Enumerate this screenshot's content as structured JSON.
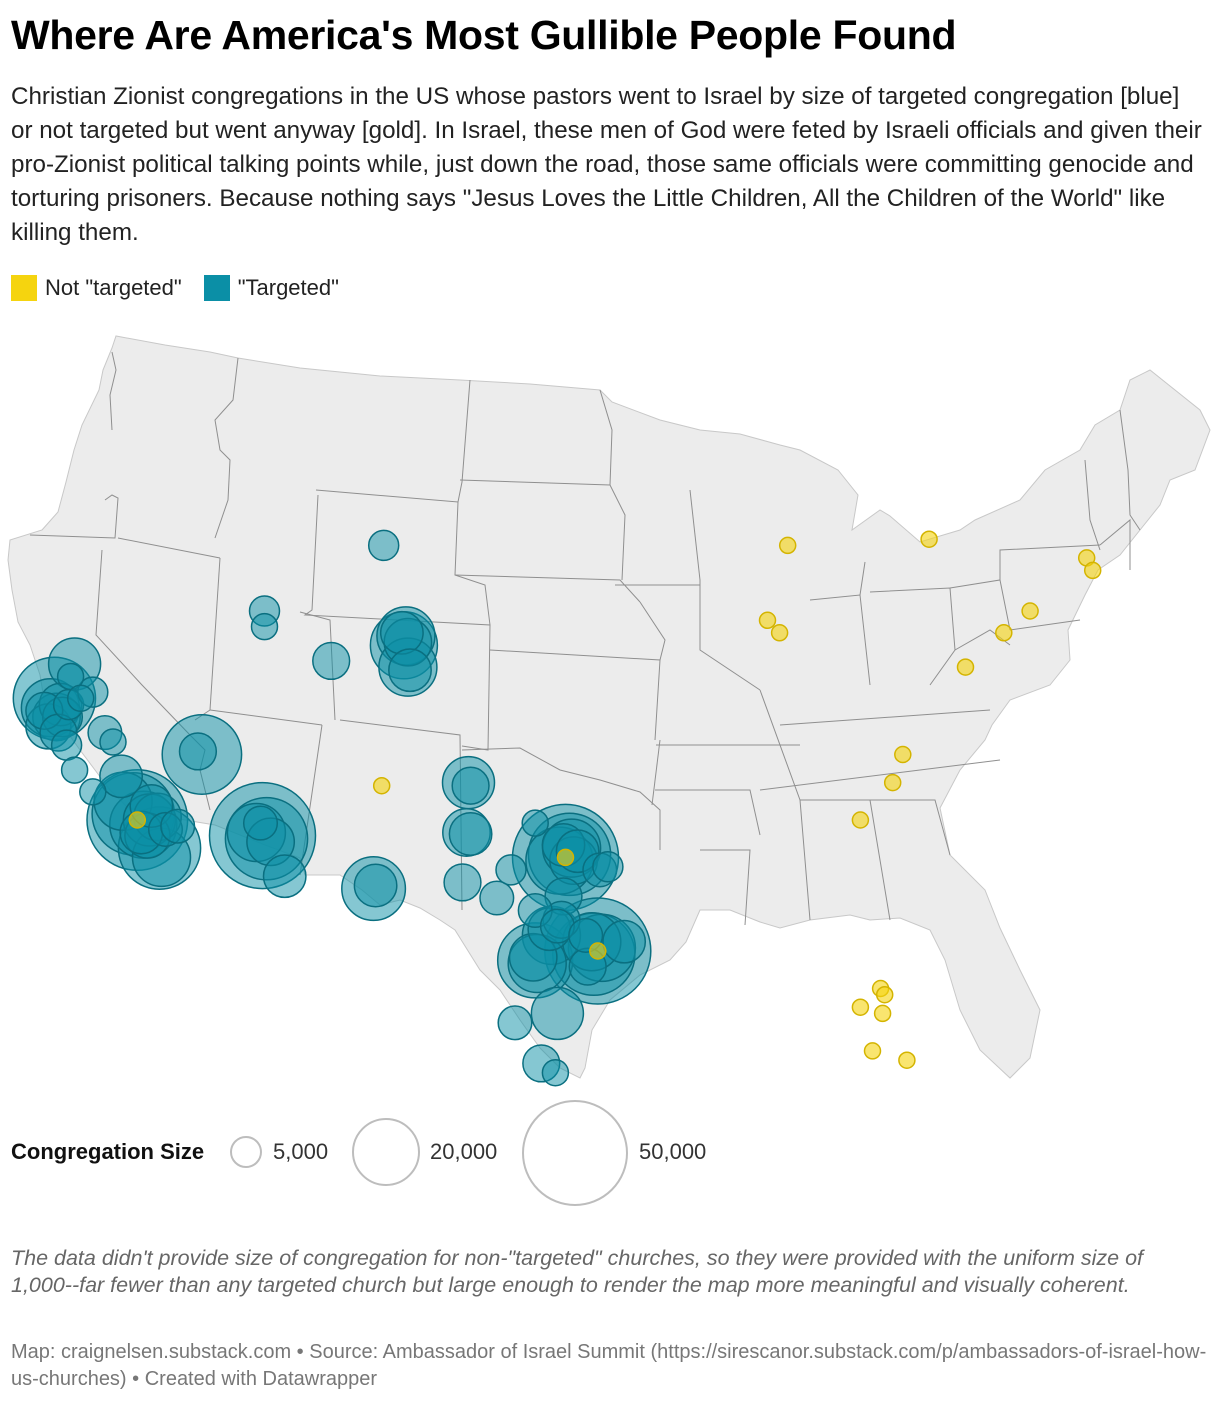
{
  "header": {
    "title": "Where Are America's Most Gullible People Found",
    "subtitle": "Christian Zionist congregations in the US whose pastors went to Israel by size of targeted congregation [blue] or not targeted but went anyway [gold]. In Israel, these men of God were feted by Israeli officials and given their pro-Zionist political talking points while, just down the road, those same officials were committing genocide and torturing prisoners. Because nothing says \"Jesus Loves the Little Children, All the Children of the World\" like killing them."
  },
  "legend": {
    "items": [
      {
        "label": "Not \"targeted\"",
        "color": "#f5d40f"
      },
      {
        "label": "\"Targeted\"",
        "color": "#0b8fa6"
      }
    ]
  },
  "size_legend": {
    "title": "Congregation Size",
    "items": [
      {
        "label": "5,000",
        "value": 5000
      },
      {
        "label": "20,000",
        "value": 20000
      },
      {
        "label": "50,000",
        "value": 50000
      }
    ]
  },
  "colors": {
    "land": "#ececec",
    "border": "#8f8f8f",
    "targeted_fill": "#0b8fa6",
    "targeted_stroke": "#0a6f80",
    "not_targeted_fill": "#f5d40f",
    "not_targeted_stroke": "#d4b400"
  },
  "map_data": {
    "type": "proportional-symbol",
    "not_targeted_size": 1000,
    "points": [
      {
        "lon": -121.3,
        "lat": 39.0,
        "size": 12000,
        "cat": "targeted"
      },
      {
        "lon": -121.5,
        "lat": 38.6,
        "size": 3000,
        "cat": "targeted"
      },
      {
        "lon": -122.3,
        "lat": 37.9,
        "size": 30000,
        "cat": "targeted"
      },
      {
        "lon": -122.0,
        "lat": 37.7,
        "size": 8000,
        "cat": "targeted"
      },
      {
        "lon": -122.5,
        "lat": 37.6,
        "size": 15000,
        "cat": "targeted"
      },
      {
        "lon": -122.8,
        "lat": 37.5,
        "size": 6000,
        "cat": "targeted"
      },
      {
        "lon": -122.2,
        "lat": 37.3,
        "size": 10000,
        "cat": "targeted"
      },
      {
        "lon": -121.9,
        "lat": 37.3,
        "size": 7000,
        "cat": "targeted"
      },
      {
        "lon": -122.6,
        "lat": 37.0,
        "size": 9000,
        "cat": "targeted"
      },
      {
        "lon": -121.6,
        "lat": 37.7,
        "size": 4000,
        "cat": "targeted"
      },
      {
        "lon": -121.0,
        "lat": 37.9,
        "size": 3000,
        "cat": "targeted"
      },
      {
        "lon": -120.4,
        "lat": 38.1,
        "size": 4000,
        "cat": "targeted"
      },
      {
        "lon": -122.1,
        "lat": 36.8,
        "size": 6000,
        "cat": "targeted"
      },
      {
        "lon": -119.8,
        "lat": 36.8,
        "size": 5000,
        "cat": "targeted"
      },
      {
        "lon": -119.4,
        "lat": 36.5,
        "size": 3000,
        "cat": "targeted"
      },
      {
        "lon": -121.7,
        "lat": 36.4,
        "size": 4000,
        "cat": "targeted"
      },
      {
        "lon": -121.3,
        "lat": 35.6,
        "size": 3000,
        "cat": "targeted"
      },
      {
        "lon": -119.0,
        "lat": 35.4,
        "size": 8000,
        "cat": "targeted"
      },
      {
        "lon": -120.4,
        "lat": 34.9,
        "size": 3000,
        "cat": "targeted"
      },
      {
        "lon": -118.9,
        "lat": 34.6,
        "size": 15000,
        "cat": "targeted"
      },
      {
        "lon": -118.4,
        "lat": 34.2,
        "size": 30000,
        "cat": "targeted"
      },
      {
        "lon": -118.2,
        "lat": 34.0,
        "size": 45000,
        "cat": "targeted"
      },
      {
        "lon": -117.9,
        "lat": 33.85,
        "size": 20000,
        "cat": "targeted"
      },
      {
        "lon": -117.6,
        "lat": 34.0,
        "size": 12000,
        "cat": "targeted"
      },
      {
        "lon": -117.2,
        "lat": 34.1,
        "size": 10000,
        "cat": "targeted"
      },
      {
        "lon": -118.0,
        "lat": 33.6,
        "size": 8000,
        "cat": "targeted"
      },
      {
        "lon": -117.7,
        "lat": 33.5,
        "size": 9000,
        "cat": "targeted"
      },
      {
        "lon": -117.1,
        "lat": 33.1,
        "size": 30000,
        "cat": "targeted"
      },
      {
        "lon": -117.0,
        "lat": 32.8,
        "size": 15000,
        "cat": "targeted"
      },
      {
        "lon": -116.8,
        "lat": 33.7,
        "size": 5000,
        "cat": "targeted"
      },
      {
        "lon": -116.2,
        "lat": 33.8,
        "size": 5000,
        "cat": "targeted"
      },
      {
        "lon": -117.5,
        "lat": 34.45,
        "size": 8000,
        "cat": "targeted"
      },
      {
        "lon": -115.0,
        "lat": 36.1,
        "size": 28000,
        "cat": "targeted"
      },
      {
        "lon": -115.2,
        "lat": 36.2,
        "size": 6000,
        "cat": "targeted"
      },
      {
        "lon": -112.0,
        "lat": 33.5,
        "size": 50000,
        "cat": "targeted"
      },
      {
        "lon": -111.8,
        "lat": 33.4,
        "size": 30000,
        "cat": "targeted"
      },
      {
        "lon": -112.3,
        "lat": 33.6,
        "size": 15000,
        "cat": "targeted"
      },
      {
        "lon": -111.6,
        "lat": 33.3,
        "size": 10000,
        "cat": "targeted"
      },
      {
        "lon": -112.1,
        "lat": 33.9,
        "size": 5000,
        "cat": "targeted"
      },
      {
        "lon": -110.9,
        "lat": 32.2,
        "size": 8000,
        "cat": "targeted"
      },
      {
        "lon": -111.9,
        "lat": 40.7,
        "size": 4000,
        "cat": "targeted"
      },
      {
        "lon": -111.9,
        "lat": 40.2,
        "size": 3000,
        "cat": "targeted"
      },
      {
        "lon": -108.6,
        "lat": 39.1,
        "size": 6000,
        "cat": "targeted"
      },
      {
        "lon": -106.0,
        "lat": 42.8,
        "size": 4000,
        "cat": "targeted"
      },
      {
        "lon": -104.9,
        "lat": 39.9,
        "size": 15000,
        "cat": "targeted"
      },
      {
        "lon": -105.0,
        "lat": 39.6,
        "size": 20000,
        "cat": "targeted"
      },
      {
        "lon": -104.8,
        "lat": 39.7,
        "size": 10000,
        "cat": "targeted"
      },
      {
        "lon": -105.1,
        "lat": 40.0,
        "size": 8000,
        "cat": "targeted"
      },
      {
        "lon": -104.8,
        "lat": 38.9,
        "size": 15000,
        "cat": "targeted"
      },
      {
        "lon": -104.7,
        "lat": 38.8,
        "size": 8000,
        "cat": "targeted"
      },
      {
        "lon": -106.5,
        "lat": 31.8,
        "size": 18000,
        "cat": "targeted"
      },
      {
        "lon": -106.4,
        "lat": 31.9,
        "size": 8000,
        "cat": "targeted"
      },
      {
        "lon": -101.8,
        "lat": 35.2,
        "size": 12000,
        "cat": "targeted"
      },
      {
        "lon": -101.7,
        "lat": 35.1,
        "size": 6000,
        "cat": "targeted"
      },
      {
        "lon": -101.9,
        "lat": 33.6,
        "size": 10000,
        "cat": "targeted"
      },
      {
        "lon": -101.7,
        "lat": 33.55,
        "size": 8000,
        "cat": "targeted"
      },
      {
        "lon": -102.1,
        "lat": 32.0,
        "size": 6000,
        "cat": "targeted"
      },
      {
        "lon": -99.7,
        "lat": 32.4,
        "size": 4000,
        "cat": "targeted"
      },
      {
        "lon": -98.5,
        "lat": 33.9,
        "size": 3000,
        "cat": "targeted"
      },
      {
        "lon": -97.0,
        "lat": 32.8,
        "size": 50000,
        "cat": "targeted"
      },
      {
        "lon": -96.8,
        "lat": 32.9,
        "size": 30000,
        "cat": "targeted"
      },
      {
        "lon": -97.3,
        "lat": 32.7,
        "size": 20000,
        "cat": "targeted"
      },
      {
        "lon": -96.7,
        "lat": 33.1,
        "size": 15000,
        "cat": "targeted"
      },
      {
        "lon": -96.6,
        "lat": 32.7,
        "size": 10000,
        "cat": "targeted"
      },
      {
        "lon": -97.1,
        "lat": 33.2,
        "size": 8000,
        "cat": "targeted"
      },
      {
        "lon": -96.4,
        "lat": 33.0,
        "size": 8000,
        "cat": "targeted"
      },
      {
        "lon": -95.3,
        "lat": 32.4,
        "size": 5000,
        "cat": "targeted"
      },
      {
        "lon": -94.9,
        "lat": 32.5,
        "size": 4000,
        "cat": "targeted"
      },
      {
        "lon": -97.1,
        "lat": 31.55,
        "size": 6000,
        "cat": "targeted"
      },
      {
        "lon": -100.4,
        "lat": 31.5,
        "size": 5000,
        "cat": "targeted"
      },
      {
        "lon": -98.5,
        "lat": 31.1,
        "size": 5000,
        "cat": "targeted"
      },
      {
        "lon": -97.7,
        "lat": 30.3,
        "size": 15000,
        "cat": "targeted"
      },
      {
        "lon": -97.8,
        "lat": 30.5,
        "size": 8000,
        "cat": "targeted"
      },
      {
        "lon": -97.4,
        "lat": 30.6,
        "size": 5000,
        "cat": "targeted"
      },
      {
        "lon": -97.2,
        "lat": 30.8,
        "size": 6000,
        "cat": "targeted"
      },
      {
        "lon": -98.5,
        "lat": 29.5,
        "size": 25000,
        "cat": "targeted"
      },
      {
        "lon": -98.4,
        "lat": 29.4,
        "size": 15000,
        "cat": "targeted"
      },
      {
        "lon": -98.6,
        "lat": 29.6,
        "size": 10000,
        "cat": "targeted"
      },
      {
        "lon": -95.4,
        "lat": 29.8,
        "size": 50000,
        "cat": "targeted"
      },
      {
        "lon": -95.6,
        "lat": 29.7,
        "size": 30000,
        "cat": "targeted"
      },
      {
        "lon": -95.2,
        "lat": 29.9,
        "size": 20000,
        "cat": "targeted"
      },
      {
        "lon": -95.7,
        "lat": 30.1,
        "size": 15000,
        "cat": "targeted"
      },
      {
        "lon": -94.1,
        "lat": 30.1,
        "size": 8000,
        "cat": "targeted"
      },
      {
        "lon": -96.0,
        "lat": 30.3,
        "size": 5000,
        "cat": "targeted"
      },
      {
        "lon": -95.9,
        "lat": 29.3,
        "size": 6000,
        "cat": "targeted"
      },
      {
        "lon": -97.4,
        "lat": 27.8,
        "size": 12000,
        "cat": "targeted"
      },
      {
        "lon": -99.5,
        "lat": 27.5,
        "size": 5000,
        "cat": "targeted"
      },
      {
        "lon": -98.2,
        "lat": 26.2,
        "size": 6000,
        "cat": "targeted"
      },
      {
        "lon": -97.5,
        "lat": 25.9,
        "size": 3000,
        "cat": "targeted"
      },
      {
        "lon": -118.2,
        "lat": 34.0,
        "size": 1000,
        "cat": "not-targeted"
      },
      {
        "lon": -106.1,
        "lat": 35.1,
        "size": 1000,
        "cat": "not-targeted"
      },
      {
        "lon": -97.0,
        "lat": 32.8,
        "size": 1000,
        "cat": "not-targeted"
      },
      {
        "lon": -95.4,
        "lat": 29.8,
        "size": 1000,
        "cat": "not-targeted"
      },
      {
        "lon": -86.0,
        "lat": 42.8,
        "size": 1000,
        "cat": "not-targeted"
      },
      {
        "lon": -87.0,
        "lat": 40.4,
        "size": 1000,
        "cat": "not-targeted"
      },
      {
        "lon": -86.4,
        "lat": 40.0,
        "size": 1000,
        "cat": "not-targeted"
      },
      {
        "lon": -79.0,
        "lat": 43.0,
        "size": 1000,
        "cat": "not-targeted"
      },
      {
        "lon": -71.2,
        "lat": 42.4,
        "size": 1000,
        "cat": "not-targeted"
      },
      {
        "lon": -70.9,
        "lat": 42.0,
        "size": 1000,
        "cat": "not-targeted"
      },
      {
        "lon": -74.0,
        "lat": 40.7,
        "size": 1000,
        "cat": "not-targeted"
      },
      {
        "lon": -75.3,
        "lat": 40.0,
        "size": 1000,
        "cat": "not-targeted"
      },
      {
        "lon": -77.2,
        "lat": 38.9,
        "size": 1000,
        "cat": "not-targeted"
      },
      {
        "lon": -80.3,
        "lat": 36.1,
        "size": 1000,
        "cat": "not-targeted"
      },
      {
        "lon": -80.8,
        "lat": 35.2,
        "size": 1000,
        "cat": "not-targeted"
      },
      {
        "lon": -82.4,
        "lat": 34.0,
        "size": 1000,
        "cat": "not-targeted"
      },
      {
        "lon": -81.4,
        "lat": 28.6,
        "size": 1000,
        "cat": "not-targeted"
      },
      {
        "lon": -81.2,
        "lat": 28.4,
        "size": 1000,
        "cat": "not-targeted"
      },
      {
        "lon": -82.4,
        "lat": 28.0,
        "size": 1000,
        "cat": "not-targeted"
      },
      {
        "lon": -81.3,
        "lat": 27.8,
        "size": 1000,
        "cat": "not-targeted"
      },
      {
        "lon": -81.8,
        "lat": 26.6,
        "size": 1000,
        "cat": "not-targeted"
      },
      {
        "lon": -80.1,
        "lat": 26.3,
        "size": 1000,
        "cat": "not-targeted"
      }
    ]
  },
  "footer": {
    "note": "The data didn't provide size of congregation for non-\"targeted\" churches, so they were provided with the uniform size of 1,000--far fewer than any targeted church but large enough to render the map more meaningful and visually coherent.",
    "source": "Map: craignelsen.substack.com • Source: Ambassador of Israel Summit (https://sirescanor.substack.com/p/ambassadors-of-israel-how-us-churches) • Created with Datawrapper"
  }
}
